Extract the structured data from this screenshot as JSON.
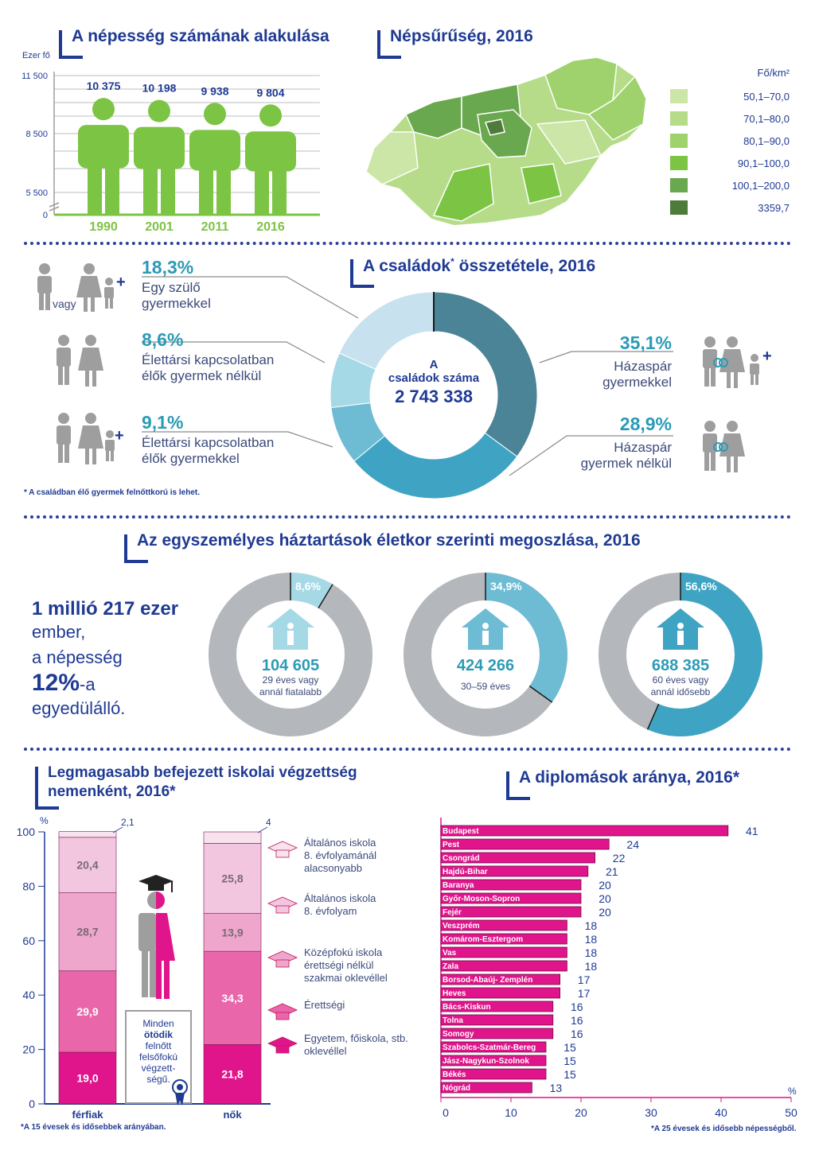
{
  "population": {
    "title": "A népesség számának alakulása",
    "unit": "Ezer fő",
    "axis_ticks": [
      "11 500",
      "8 500",
      "5 500",
      "0"
    ],
    "years": [
      "1990",
      "2001",
      "2011",
      "2016"
    ],
    "values": [
      "10 375",
      "10 198",
      "9 938",
      "9 804"
    ]
  },
  "density": {
    "title": "Népsűrűség, 2016",
    "legend_title": "Fő/km²",
    "legend": [
      {
        "label": "50,1–70,0",
        "color": "#cbe6a6"
      },
      {
        "label": "70,1–80,0",
        "color": "#b6dc8a"
      },
      {
        "label": "80,1–90,0",
        "color": "#9fd26c"
      },
      {
        "label": "90,1–100,0",
        "color": "#7cc443"
      },
      {
        "label": "100,1–200,0",
        "color": "#6aa84f"
      },
      {
        "label": "3359,7",
        "color": "#4e7a3a"
      }
    ]
  },
  "families": {
    "title": "A családok",
    "title_star": "*",
    "title_rest": " összetétele, 2016",
    "center_line1": "A",
    "center_line2": "családok száma",
    "center_value": "2 743 338",
    "footnote": "* A családban élő gyermek felnőttkorú is lehet.",
    "vagy": "vagy",
    "items": [
      {
        "pct": "18,3%",
        "line1": "Egy szülő",
        "line2": "gyermekkel"
      },
      {
        "pct": "8,6%",
        "line1": "Élettársi kapcsolatban",
        "line2": "élők gyermek nélkül"
      },
      {
        "pct": "9,1%",
        "line1": "Élettársi kapcsolatban",
        "line2": "élők gyermekkel"
      },
      {
        "pct": "35,1%",
        "line1": "Házaspár",
        "line2": "gyermekkel"
      },
      {
        "pct": "28,9%",
        "line1": "Házaspár",
        "line2": "gyermek nélkül"
      }
    ]
  },
  "single": {
    "title": "Az egyszemélyes háztartások életkor szerinti megoszlása, 2016",
    "left_line1": "1 millió 217 ezer",
    "left_line2": "ember,",
    "left_line3": "a népesség",
    "left_big": "12%",
    "left_suffix": "-a",
    "left_line5": "egyedülálló.",
    "donuts": [
      {
        "pct": "8,6%",
        "value": "104 605",
        "desc1": "29 éves vagy",
        "desc2": "annál fiatalabb"
      },
      {
        "pct": "34,9%",
        "value": "424 266",
        "desc1": "30–59 éves",
        "desc2": ""
      },
      {
        "pct": "56,6%",
        "value": "688 385",
        "desc1": "60 éves vagy",
        "desc2": "annál idősebb"
      }
    ]
  },
  "education": {
    "title_line1": "Legmagasabb befejezett iskolai végzettség",
    "title_line2": "nemenként, 2016*",
    "percent_sign": "%",
    "y_ticks": [
      "100",
      "80",
      "60",
      "40",
      "20",
      "0"
    ],
    "men_label": "férfiak",
    "women_label": "nők",
    "men_top": "2,1",
    "women_top": "4,2",
    "note_line1": "Minden",
    "note_line2": "ötödik",
    "note_line3": "felnőtt",
    "note_line4": "felsőfokú",
    "note_line5": "végzett-",
    "note_line6": "ségű.",
    "footnote": "*A 15 évesek és idősebbek arányában.",
    "legend": [
      {
        "line1": "Általános iskola",
        "line2": "8. évfolyamánál",
        "line3": "alacsonyabb",
        "color": "#f7e2ee"
      },
      {
        "line1": "Általános iskola",
        "line2": "8. évfolyam",
        "line3": "",
        "color": "#f3c6df"
      },
      {
        "line1": "Középfokú iskola",
        "line2": "érettségi nélkül",
        "line3": "szakmai oklevéllel",
        "color": "#efa6cc"
      },
      {
        "line1": "Érettségi",
        "line2": "",
        "line3": "",
        "color": "#e966ab"
      },
      {
        "line1": "Egyetem, főiskola, stb.",
        "line2": "oklevéllel",
        "line3": "",
        "color": "#e0148b"
      }
    ]
  },
  "diplomas": {
    "title": "A diplomások aránya, 2016*",
    "footnote": "*A 25 évesek és idősebb népességből.",
    "axis_unit": "%",
    "x_ticks": [
      "0",
      "10",
      "20",
      "30",
      "40",
      "50"
    ]
  },
  "chart_data": [
    {
      "type": "bar",
      "title": "A népesség számának alakulása",
      "ylabel": "Ezer fő",
      "categories": [
        "1990",
        "2001",
        "2011",
        "2016"
      ],
      "values": [
        10375,
        10198,
        9938,
        9804
      ],
      "ylim": [
        0,
        11500
      ]
    },
    {
      "type": "pie",
      "title": "A családok* összetétele, 2016",
      "categories": [
        "Házaspár gyermekkel",
        "Házaspár gyermek nélkül",
        "Élettársi kapcsolatban élők gyermekkel",
        "Élettársi kapcsolatban élők gyermek nélkül",
        "Egy szülő gyermekkel"
      ],
      "values": [
        35.1,
        28.9,
        9.1,
        8.6,
        18.3
      ],
      "colors": [
        "#4a8496",
        "#3fa4c4",
        "#6dbcd4",
        "#a6d9e6",
        "#c8e1ee"
      ]
    },
    {
      "type": "pie",
      "title": "Az egyszemélyes háztartások életkor szerinti megoszlása, 2016",
      "categories": [
        "29 éves vagy annál fiatalabb",
        "30–59 éves",
        "60 éves vagy annál idősebb"
      ],
      "values": [
        8.6,
        34.9,
        56.6
      ],
      "colors": [
        "#a6d9e6",
        "#6dbcd4",
        "#3fa4c4"
      ]
    },
    {
      "type": "bar",
      "title": "Legmagasabb befejezett iskolai végzettség nemenként, 2016*",
      "categories": [
        "férfiak",
        "nők"
      ],
      "ylim": [
        0,
        100
      ],
      "series": [
        {
          "name": "Egyetem, főiskola, stb. oklevéllel",
          "values": [
            19.0,
            21.8
          ]
        },
        {
          "name": "Érettségi",
          "values": [
            29.9,
            34.3
          ]
        },
        {
          "name": "Középfokú iskola érettségi nélkül szakmai oklevéllel",
          "values": [
            28.7,
            13.9
          ]
        },
        {
          "name": "Általános iskola 8. évfolyam",
          "values": [
            20.4,
            25.8
          ]
        },
        {
          "name": "Általános iskola 8. évfolyamánál alacsonyabb",
          "values": [
            2.1,
            4.2
          ]
        }
      ],
      "labels": {
        "men": [
          "19,0",
          "29,9",
          "28,7",
          "20,4"
        ],
        "women": [
          "21,8",
          "34,3",
          "13,9",
          "25,8"
        ]
      }
    },
    {
      "type": "bar",
      "title": "A diplomások aránya, 2016*",
      "xlim": [
        0,
        50
      ],
      "categories": [
        "Budapest",
        "Pest",
        "Csongrád",
        "Hajdú-Bihar",
        "Baranya",
        "Győr-Moson-Sopron",
        "Fejér",
        "Veszprém",
        "Komárom-Esztergom",
        "Vas",
        "Zala",
        "Borsod-Abaúj- Zemplén",
        "Heves",
        "Bács-Kiskun",
        "Tolna",
        "Somogy",
        "Szabolcs-Szatmár-Bereg",
        "Jász-Nagykun-Szolnok",
        "Békés",
        "Nógrád"
      ],
      "values": [
        41,
        24,
        22,
        21,
        20,
        20,
        20,
        18,
        18,
        18,
        18,
        17,
        17,
        16,
        16,
        16,
        15,
        15,
        15,
        13
      ]
    }
  ]
}
